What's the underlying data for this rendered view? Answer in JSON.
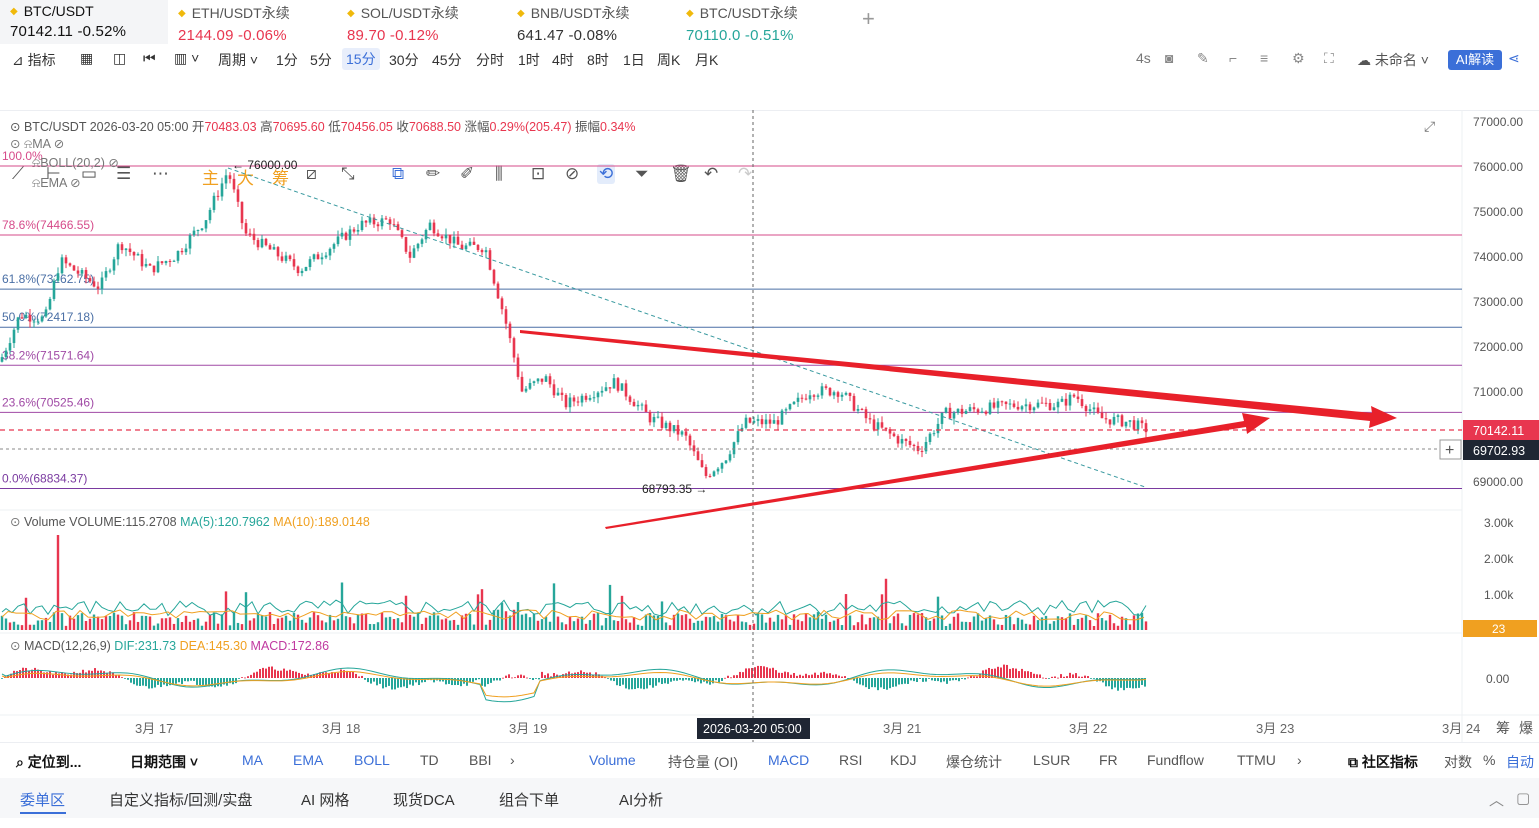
{
  "tabs": [
    {
      "name": "BTC/USDT",
      "price": "70142.11",
      "change": "-0.52%",
      "active": true
    },
    {
      "name": "ETH/USDT永续",
      "price": "2144.09",
      "change": "-0.06%",
      "active": false
    },
    {
      "name": "SOL/USDT永续",
      "price": "89.70",
      "change": "-0.12%",
      "active": false
    },
    {
      "name": "BNB/USDT永续",
      "price": "641.47",
      "change": "-0.08%",
      "active": false
    },
    {
      "name": "BTC/USDT永续",
      "price": "70110.0",
      "change": "-0.51%",
      "active": false
    }
  ],
  "tab_add": "+",
  "toolbar": {
    "indicator_label": "指标",
    "period_label": "周期",
    "intervals": [
      "1分",
      "5分",
      "15分",
      "30分",
      "45分",
      "分时",
      "1时",
      "4时",
      "8时",
      "1日",
      "周K",
      "月K"
    ],
    "selected_interval": "15分",
    "refresh_label": "4s",
    "workspace_label": "未命名",
    "ai_label": "AI解读"
  },
  "draw_tools": {
    "main_label": "主",
    "big_label": "大",
    "chip_label": "筹"
  },
  "ohlc_line": {
    "symbol": "BTC/USDT",
    "datetime": "2026-03-20 05:00",
    "open_label": "开",
    "open": "70483.03",
    "high_label": "高",
    "high": "70695.60",
    "low_label": "低",
    "low": "70456.05",
    "close_label": "收",
    "close": "70688.50",
    "change_label": "涨幅",
    "change": "0.29%(205.47)",
    "amp_label": "振幅",
    "amp": "0.34%"
  },
  "overlays": [
    "MA",
    "BOLL(20,2)",
    "EMA"
  ],
  "fib_levels": [
    {
      "label": "100.0%",
      "price": 76000.0,
      "color": "#d64b8a"
    },
    {
      "label": "78.6%(74466.55)",
      "price": 74466.55,
      "color": "#d64b8a"
    },
    {
      "label": "61.8%(73262.75)",
      "price": 73262.75,
      "color": "#4a6fa5"
    },
    {
      "label": "50.0%(72417.18)",
      "price": 72417.18,
      "color": "#4a6fa5"
    },
    {
      "label": "38.2%(71571.64)",
      "price": 71571.64,
      "color": "#a04aa5"
    },
    {
      "label": "23.6%(70525.46)",
      "price": 70525.46,
      "color": "#a04aa5"
    },
    {
      "label": "0.0%(68834.37)",
      "price": 68834.37,
      "color": "#7a3aa0"
    }
  ],
  "annotations": {
    "high": "76000.00",
    "low": "68793.35"
  },
  "price_axis": {
    "ticks": [
      "77000.00",
      "76000.00",
      "75000.00",
      "74000.00",
      "73000.00",
      "72000.00",
      "71000.00",
      "69000.00"
    ],
    "last_price": "70142.11",
    "cursor_price": "69702.93",
    "last_price_color": "#e8364f"
  },
  "volume": {
    "title": "Volume",
    "value_label": "VOLUME:115.2708",
    "ma5": "MA(5):120.7962",
    "ma10": "MA(10):189.0148",
    "ticks": [
      "3.00k",
      "2.00k",
      "1.00k"
    ],
    "badge": "23"
  },
  "macd": {
    "title": "MACD(12,26,9)",
    "dif": "DIF:231.73",
    "dea": "DEA:145.30",
    "macd": "MACD:172.86",
    "tick": "0.00"
  },
  "time_axis": {
    "labels": [
      "3月 17",
      "3月 18",
      "3月 19",
      "3月 21",
      "3月 22",
      "3月 23",
      "3月 24"
    ],
    "cursor": "2026-03-20 05:00",
    "extra": [
      "筹",
      "爆"
    ]
  },
  "bottom_indicators": {
    "locate": "定位到...",
    "range": "日期范围",
    "main": [
      "MA",
      "EMA",
      "BOLL",
      "TD",
      "BBI"
    ],
    "sub": [
      "Volume",
      "持仓量 (OI)",
      "MACD",
      "RSI",
      "KDJ",
      "爆仓统计",
      "LSUR",
      "FR",
      "Fundflow",
      "TTMU"
    ],
    "active_sub": [
      "Volume",
      "MACD"
    ],
    "community": "社区指标",
    "log": "对数",
    "pct": "%",
    "auto": "自动"
  },
  "bottom_tabs": [
    "委单区",
    "自定义指标/回测/实盘",
    "AI 网格",
    "现货DCA",
    "组合下单",
    "AI分析"
  ],
  "colors": {
    "up": "#26a69a",
    "down": "#e8364f",
    "accent": "#3b6fd8",
    "arrow": "#e8202a"
  }
}
